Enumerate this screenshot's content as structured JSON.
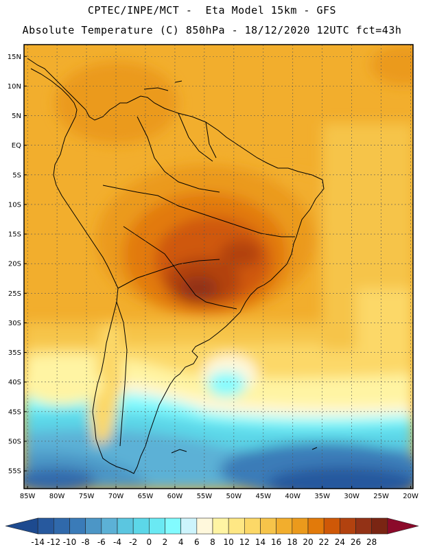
{
  "header": {
    "line1": "CPTEC/INPE/MCT -  Eta Model 15km - GFS",
    "line2": "Absolute Temperature (C) 850hPa - 18/12/2020 12UTC fct=43h"
  },
  "axes": {
    "lat_labels": [
      "15N",
      "10N",
      "5N",
      "EQ",
      "5S",
      "10S",
      "15S",
      "20S",
      "25S",
      "30S",
      "35S",
      "40S",
      "45S",
      "50S",
      "55S"
    ],
    "lat_values": [
      15,
      10,
      5,
      0,
      -5,
      -10,
      -15,
      -20,
      -25,
      -30,
      -35,
      -40,
      -45,
      -50,
      -55
    ],
    "lon_labels": [
      "85W",
      "80W",
      "75W",
      "70W",
      "65W",
      "60W",
      "55W",
      "50W",
      "45W",
      "40W",
      "35W",
      "30W",
      "25W",
      "20W"
    ],
    "lon_values": [
      -85,
      -80,
      -75,
      -70,
      -65,
      -60,
      -55,
      -50,
      -45,
      -40,
      -35,
      -30,
      -25,
      -20
    ],
    "lat_range": [
      -58,
      17
    ],
    "lon_range": [
      -85.6,
      -19.6
    ]
  },
  "colorbar": {
    "labels": [
      "-14",
      "-12",
      "-10",
      "-8",
      "-6",
      "-4",
      "-2",
      "0",
      "2",
      "4",
      "6",
      "8",
      "10",
      "12",
      "14",
      "16",
      "18",
      "20",
      "22",
      "24",
      "26",
      "28"
    ],
    "colors": [
      "#1d4a8f",
      "#27599e",
      "#3069ab",
      "#3a7bb8",
      "#4c96c6",
      "#5cb1d6",
      "#5bc6e0",
      "#5cd7e8",
      "#6ae9f3",
      "#82fbff",
      "#cdf4fc",
      "#fff8dc",
      "#fff4a3",
      "#fee784",
      "#fcd867",
      "#f6c44a",
      "#f2ae2d",
      "#eb9a1c",
      "#e27a0a",
      "#cf5807",
      "#b2420f",
      "#933216",
      "#7a2513",
      "#8b0a2a"
    ]
  }
}
